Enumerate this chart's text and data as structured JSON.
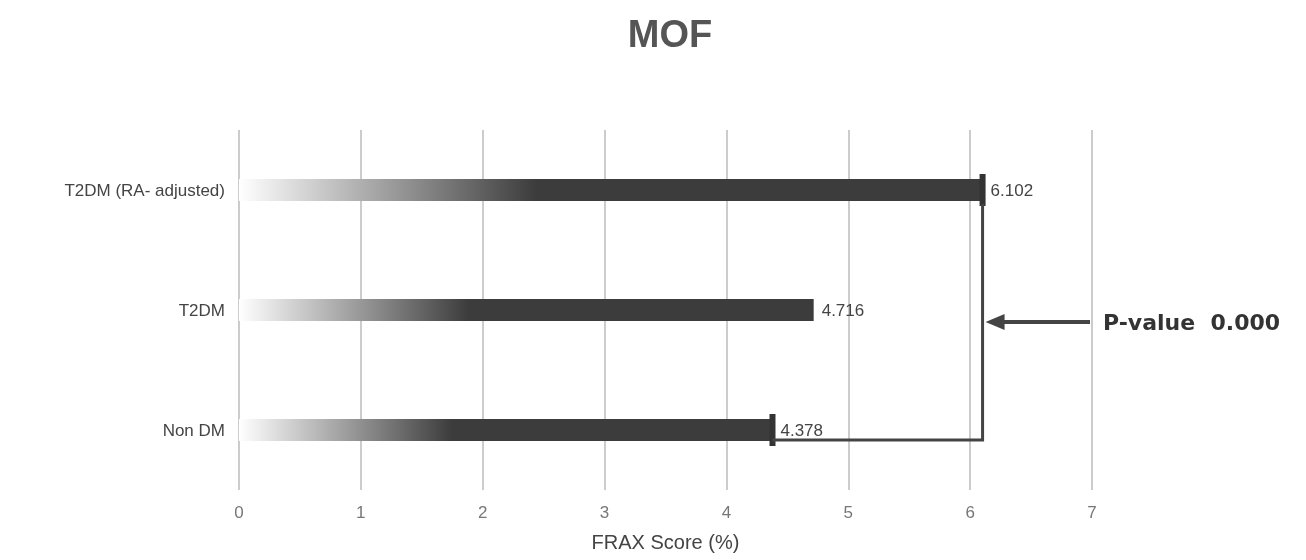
{
  "chart_data": {
    "type": "bar",
    "orientation": "horizontal",
    "title": "MOF",
    "xlabel": "FRAX Score (%)",
    "categories": [
      "T2DM (RA- adjusted)",
      "T2DM",
      "Non DM"
    ],
    "values": [
      6.102,
      4.716,
      4.378
    ],
    "color": "#3c3c3c",
    "xlim": [
      0,
      7
    ],
    "xticks": [
      0,
      1,
      2,
      3,
      4,
      5,
      6,
      7
    ],
    "grid": "x",
    "data_labels": true,
    "annotations": [
      "P-value  0.000"
    ]
  }
}
